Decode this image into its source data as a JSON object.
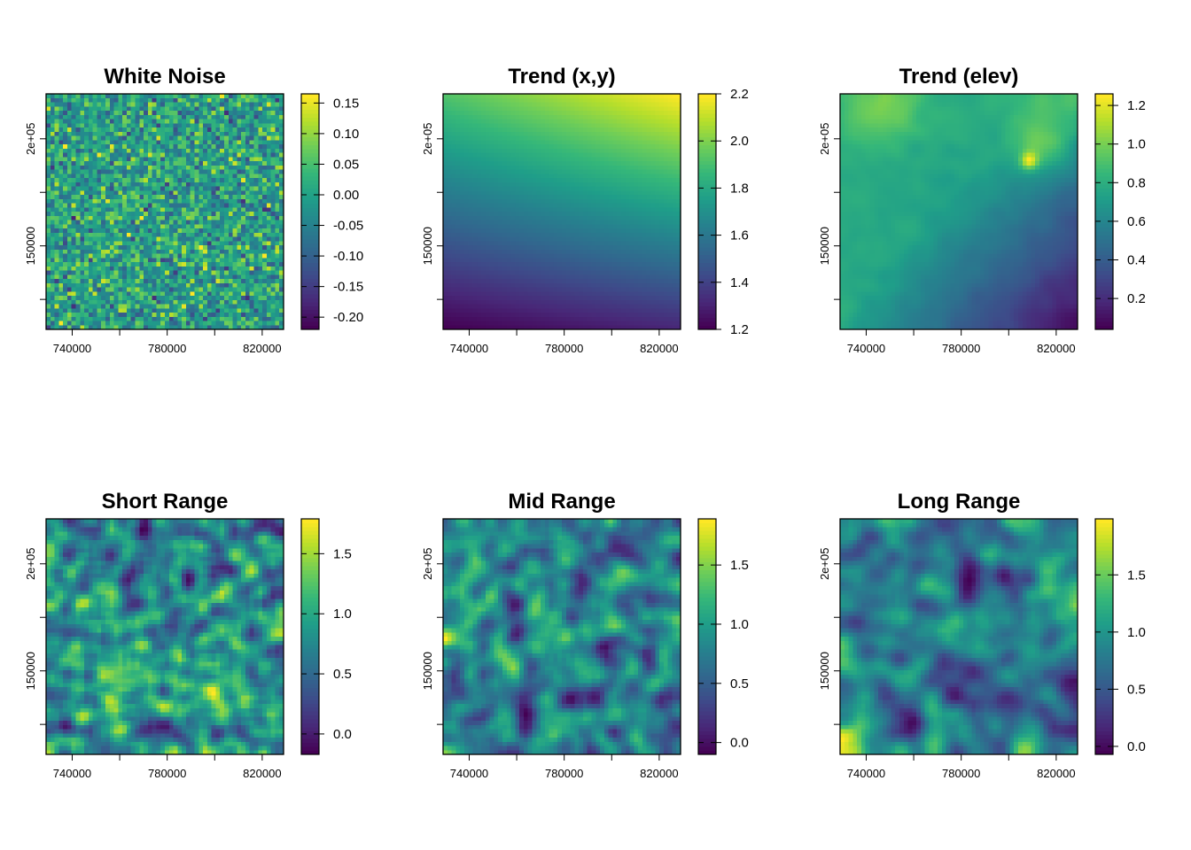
{
  "chart_data": [
    {
      "type": "heatmap",
      "title": "White Noise",
      "pattern": "noise",
      "x_ticks": [
        740000,
        780000,
        820000
      ],
      "x_tick_labels": [
        "740000",
        "780000",
        "820000"
      ],
      "xlim": [
        729000,
        829000
      ],
      "y_ticks": [
        150000,
        200000
      ],
      "y_tick_labels": [
        "150000",
        "2e+05"
      ],
      "ylim": [
        111000,
        221000
      ],
      "colorbar": {
        "min": -0.22,
        "max": 0.165,
        "ticks": [
          -0.2,
          -0.15,
          -0.1,
          -0.05,
          0.0,
          0.05,
          0.1,
          0.15
        ],
        "tick_labels": [
          "-0.20",
          "-0.15",
          "-0.10",
          "-0.05",
          "0.00",
          "0.05",
          "0.10",
          "0.15"
        ]
      }
    },
    {
      "type": "heatmap",
      "title": "Trend (x,y)",
      "pattern": "trend_xy",
      "x_ticks": [
        740000,
        780000,
        820000
      ],
      "x_tick_labels": [
        "740000",
        "780000",
        "820000"
      ],
      "xlim": [
        729000,
        829000
      ],
      "y_ticks": [
        150000,
        200000
      ],
      "y_tick_labels": [
        "150000",
        "2e+05"
      ],
      "ylim": [
        111000,
        221000
      ],
      "colorbar": {
        "min": 1.2,
        "max": 2.2,
        "ticks": [
          1.2,
          1.4,
          1.6,
          1.8,
          2.0,
          2.2
        ],
        "tick_labels": [
          "1.2",
          "1.4",
          "1.6",
          "1.8",
          "2.0",
          "2.2"
        ]
      }
    },
    {
      "type": "heatmap",
      "title": "Trend (elev)",
      "pattern": "trend_elev",
      "x_ticks": [
        740000,
        780000,
        820000
      ],
      "x_tick_labels": [
        "740000",
        "780000",
        "820000"
      ],
      "xlim": [
        729000,
        829000
      ],
      "y_ticks": [
        150000,
        200000
      ],
      "y_tick_labels": [
        "150000",
        "2e+05"
      ],
      "ylim": [
        111000,
        221000
      ],
      "colorbar": {
        "min": 0.04,
        "max": 1.26,
        "ticks": [
          0.2,
          0.4,
          0.6,
          0.8,
          1.0,
          1.2
        ],
        "tick_labels": [
          "0.2",
          "0.4",
          "0.6",
          "0.8",
          "1.0",
          "1.2"
        ]
      }
    },
    {
      "type": "heatmap",
      "title": "Short Range",
      "pattern": "short",
      "x_ticks": [
        740000,
        780000,
        820000
      ],
      "x_tick_labels": [
        "740000",
        "780000",
        "820000"
      ],
      "xlim": [
        729000,
        829000
      ],
      "y_ticks": [
        150000,
        200000
      ],
      "y_tick_labels": [
        "150000",
        "2e+05"
      ],
      "ylim": [
        111000,
        221000
      ],
      "colorbar": {
        "min": -0.17,
        "max": 1.79,
        "ticks": [
          0.0,
          0.5,
          1.0,
          1.5
        ],
        "tick_labels": [
          "0.0",
          "0.5",
          "1.0",
          "1.5"
        ]
      }
    },
    {
      "type": "heatmap",
      "title": "Mid Range",
      "pattern": "mid",
      "x_ticks": [
        740000,
        780000,
        820000
      ],
      "x_tick_labels": [
        "740000",
        "780000",
        "820000"
      ],
      "xlim": [
        729000,
        829000
      ],
      "y_ticks": [
        150000,
        200000
      ],
      "y_tick_labels": [
        "150000",
        "2e+05"
      ],
      "ylim": [
        111000,
        221000
      ],
      "colorbar": {
        "min": -0.1,
        "max": 1.89,
        "ticks": [
          0.0,
          0.5,
          1.0,
          1.5
        ],
        "tick_labels": [
          "0.0",
          "0.5",
          "1.0",
          "1.5"
        ]
      }
    },
    {
      "type": "heatmap",
      "title": "Long Range",
      "pattern": "long",
      "x_ticks": [
        740000,
        780000,
        820000
      ],
      "x_tick_labels": [
        "740000",
        "780000",
        "820000"
      ],
      "xlim": [
        729000,
        829000
      ],
      "y_ticks": [
        150000,
        200000
      ],
      "y_tick_labels": [
        "150000",
        "2e+05"
      ],
      "ylim": [
        111000,
        221000
      ],
      "colorbar": {
        "min": -0.07,
        "max": 1.99,
        "ticks": [
          0.0,
          0.5,
          1.0,
          1.5
        ],
        "tick_labels": [
          "0.0",
          "0.5",
          "1.0",
          "1.5"
        ]
      }
    }
  ]
}
